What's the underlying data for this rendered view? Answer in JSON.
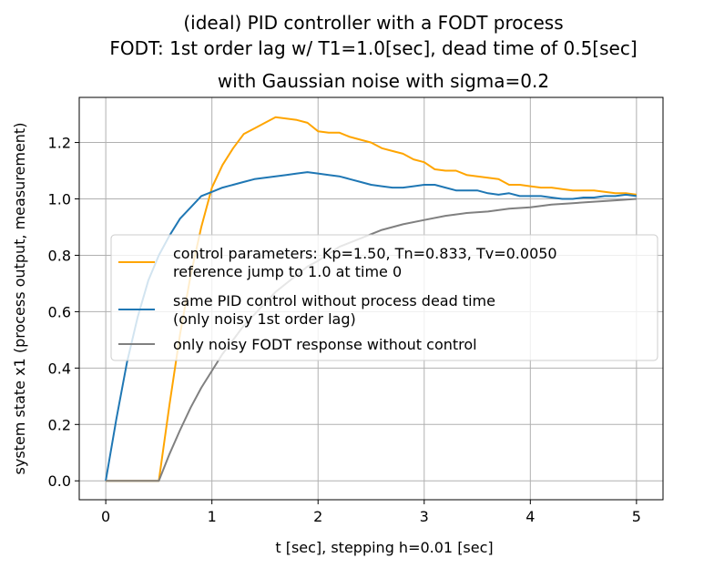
{
  "chart_data": {
    "type": "line",
    "title_lines": [
      "(ideal) PID controller with a FODT process",
      "FODT: 1st order lag w/ T1=1.0[sec], dead time of 0.5[sec]",
      "with Gaussian noise with sigma=0.2"
    ],
    "xlabel": "t [sec], stepping h=0.01 [sec]",
    "ylabel": "system state x1 (process output, measurement)",
    "xlim": [
      -0.25,
      5.25
    ],
    "ylim": [
      -0.067,
      1.36
    ],
    "xticks": [
      0,
      1,
      2,
      3,
      4,
      5
    ],
    "xtick_labels": [
      "0",
      "1",
      "2",
      "3",
      "4",
      "5"
    ],
    "yticks": [
      0.0,
      0.2,
      0.4,
      0.6,
      0.8,
      1.0,
      1.2
    ],
    "ytick_labels": [
      "0.0",
      "0.2",
      "0.4",
      "0.6",
      "0.8",
      "1.0",
      "1.2"
    ],
    "grid": true,
    "legend_position": "center-left",
    "series": [
      {
        "name": "control parameters: Kp=1.50, Tn=0.833, Tv=0.0050\nreference jump to 1.0 at time 0",
        "color": "#ffa500",
        "x": [
          0,
          0.5,
          0.6,
          0.7,
          0.8,
          0.9,
          1.0,
          1.1,
          1.2,
          1.3,
          1.4,
          1.5,
          1.6,
          1.7,
          1.8,
          1.9,
          2.0,
          2.1,
          2.2,
          2.3,
          2.4,
          2.5,
          2.6,
          2.7,
          2.8,
          2.9,
          3.0,
          3.1,
          3.2,
          3.3,
          3.4,
          3.5,
          3.6,
          3.7,
          3.8,
          3.9,
          4.0,
          4.1,
          4.2,
          4.3,
          4.4,
          4.5,
          4.6,
          4.7,
          4.8,
          4.9,
          5.0
        ],
        "y": [
          0.0,
          0.0,
          0.27,
          0.52,
          0.73,
          0.9,
          1.04,
          1.12,
          1.18,
          1.23,
          1.25,
          1.27,
          1.29,
          1.285,
          1.28,
          1.27,
          1.24,
          1.235,
          1.235,
          1.22,
          1.21,
          1.2,
          1.18,
          1.17,
          1.16,
          1.14,
          1.13,
          1.105,
          1.1,
          1.1,
          1.085,
          1.08,
          1.075,
          1.07,
          1.05,
          1.05,
          1.045,
          1.04,
          1.04,
          1.035,
          1.03,
          1.03,
          1.03,
          1.025,
          1.02,
          1.02,
          1.015
        ]
      },
      {
        "name": "same PID control without process dead time\n(only noisy 1st order lag)",
        "color": "#1f77b4",
        "x": [
          0,
          0.1,
          0.2,
          0.3,
          0.4,
          0.5,
          0.6,
          0.7,
          0.8,
          0.9,
          1.0,
          1.1,
          1.2,
          1.3,
          1.4,
          1.5,
          1.6,
          1.7,
          1.8,
          1.9,
          2.0,
          2.1,
          2.2,
          2.3,
          2.4,
          2.5,
          2.6,
          2.7,
          2.8,
          2.9,
          3.0,
          3.1,
          3.2,
          3.3,
          3.4,
          3.5,
          3.6,
          3.7,
          3.8,
          3.9,
          4.0,
          4.1,
          4.2,
          4.3,
          4.4,
          4.5,
          4.6,
          4.7,
          4.8,
          4.9,
          5.0
        ],
        "y": [
          0.0,
          0.22,
          0.42,
          0.58,
          0.71,
          0.8,
          0.87,
          0.93,
          0.97,
          1.01,
          1.025,
          1.04,
          1.05,
          1.06,
          1.07,
          1.075,
          1.08,
          1.085,
          1.09,
          1.095,
          1.09,
          1.085,
          1.08,
          1.07,
          1.06,
          1.05,
          1.045,
          1.04,
          1.04,
          1.045,
          1.05,
          1.05,
          1.04,
          1.03,
          1.03,
          1.03,
          1.02,
          1.015,
          1.02,
          1.01,
          1.01,
          1.01,
          1.005,
          1.0,
          1.0,
          1.005,
          1.005,
          1.01,
          1.01,
          1.015,
          1.01
        ]
      },
      {
        "name": "only noisy FODT response without control",
        "color": "#808080",
        "x": [
          0,
          0.5,
          0.6,
          0.7,
          0.8,
          0.9,
          1.0,
          1.1,
          1.2,
          1.3,
          1.4,
          1.5,
          1.6,
          1.7,
          1.8,
          1.9,
          2.0,
          2.2,
          2.4,
          2.6,
          2.8,
          3.0,
          3.2,
          3.4,
          3.6,
          3.8,
          4.0,
          4.2,
          4.4,
          4.6,
          4.8,
          5.0
        ],
        "y": [
          0.0,
          0.0,
          0.095,
          0.18,
          0.26,
          0.33,
          0.39,
          0.45,
          0.5,
          0.55,
          0.59,
          0.63,
          0.67,
          0.7,
          0.73,
          0.76,
          0.78,
          0.83,
          0.86,
          0.89,
          0.91,
          0.925,
          0.94,
          0.95,
          0.955,
          0.965,
          0.97,
          0.98,
          0.985,
          0.99,
          0.995,
          1.0
        ]
      }
    ]
  }
}
